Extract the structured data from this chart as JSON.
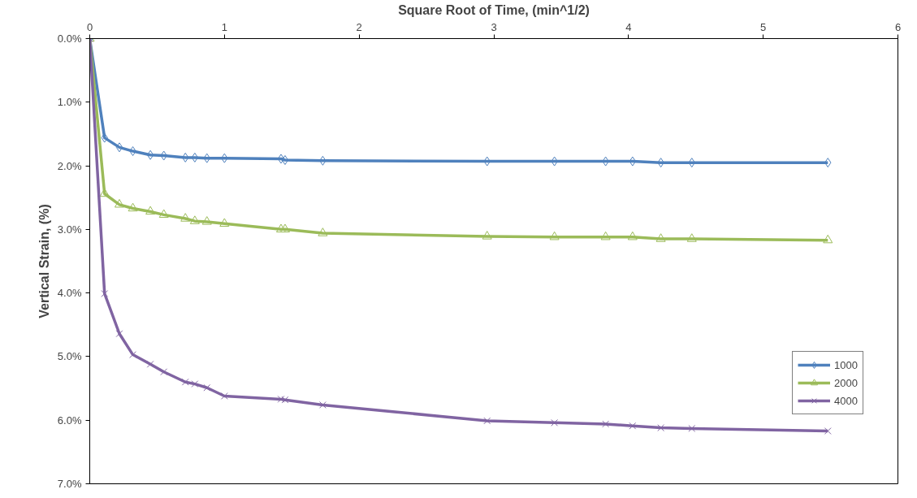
{
  "chart_data": {
    "type": "line",
    "xlabel": "Square Root of Time, (min^1/2)",
    "ylabel": "Vertical Strain, (%)",
    "xlim": [
      0,
      6
    ],
    "xticks": [
      0,
      1,
      2,
      3,
      4,
      5,
      6
    ],
    "ylim": [
      7,
      0
    ],
    "yticks": [
      {
        "value": 0,
        "label": "0.0%"
      },
      {
        "value": 1,
        "label": "1.0%"
      },
      {
        "value": 2,
        "label": "2.0%"
      },
      {
        "value": 3,
        "label": "3.0%"
      },
      {
        "value": 4,
        "label": "4.0%"
      },
      {
        "value": 5,
        "label": "5.0%"
      },
      {
        "value": 6,
        "label": "6.0%"
      },
      {
        "value": 7,
        "label": "7.0%"
      }
    ],
    "x": [
      0,
      0.11,
      0.22,
      0.32,
      0.45,
      0.55,
      0.71,
      0.78,
      0.87,
      1.0,
      1.42,
      1.45,
      1.73,
      2.95,
      3.45,
      3.83,
      4.03,
      4.24,
      4.47,
      5.48
    ],
    "series": [
      {
        "name": "1000",
        "color": "#4f81bd",
        "marker": "diamond",
        "values": [
          0,
          1.56,
          1.71,
          1.77,
          1.83,
          1.84,
          1.87,
          1.87,
          1.88,
          1.88,
          1.89,
          1.91,
          1.92,
          1.93,
          1.93,
          1.93,
          1.93,
          1.95,
          1.95,
          1.95
        ]
      },
      {
        "name": "2000",
        "color": "#9bbb59",
        "marker": "triangle",
        "values": [
          0,
          2.44,
          2.61,
          2.67,
          2.72,
          2.77,
          2.83,
          2.87,
          2.88,
          2.91,
          3.0,
          3.0,
          3.06,
          3.11,
          3.12,
          3.12,
          3.12,
          3.15,
          3.15,
          3.17
        ]
      },
      {
        "name": "4000",
        "color": "#8064a2",
        "marker": "cross",
        "values": [
          0,
          4.01,
          4.64,
          4.97,
          5.12,
          5.24,
          5.4,
          5.43,
          5.49,
          5.62,
          5.67,
          5.68,
          5.76,
          6.01,
          6.04,
          6.06,
          6.09,
          6.12,
          6.13,
          6.17
        ]
      }
    ],
    "grid": false,
    "legend": "right",
    "line_style": "solid"
  }
}
